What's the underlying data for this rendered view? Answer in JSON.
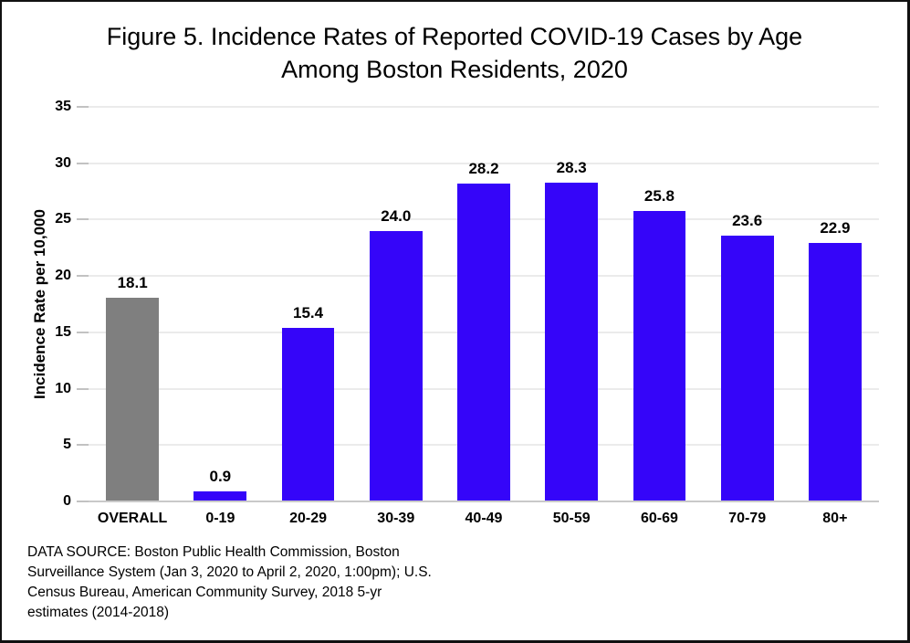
{
  "title_lines": [
    "Figure 5. Incidence Rates of Reported COVID-19 Cases by Age",
    "Among Boston Residents, 2020"
  ],
  "footer": {
    "lines": [
      "DATA SOURCE: Boston Public Health Commission, Boston",
      "Surveillance System (Jan 3, 2020 to April 2, 2020, 1:00pm); U.S.",
      "Census Bureau, American Community Survey, 2018 5-yr",
      "estimates (2014-2018)"
    ]
  },
  "chart_data": {
    "type": "bar",
    "title": "Figure 5. Incidence Rates of Reported COVID-19 Cases by Age Among Boston Residents, 2020",
    "xlabel": "",
    "ylabel": "Incidence Rate per 10,000",
    "ylim": [
      0,
      35
    ],
    "yticks": [
      0,
      5,
      10,
      15,
      20,
      25,
      30,
      35
    ],
    "grid": true,
    "legend_position": "none",
    "categories": [
      "OVERALL",
      "0-19",
      "20-29",
      "30-39",
      "40-49",
      "50-59",
      "60-69",
      "70-79",
      "80+"
    ],
    "values": [
      18.1,
      0.9,
      15.4,
      24.0,
      28.2,
      28.3,
      25.8,
      23.6,
      22.9
    ],
    "value_labels": [
      "18.1",
      "0.9",
      "15.4",
      "24.0",
      "28.2",
      "28.3",
      "25.8",
      "23.6",
      "22.9"
    ],
    "bar_colors": [
      "#7f7f7f",
      "#3505f9",
      "#3505f9",
      "#3505f9",
      "#3505f9",
      "#3505f9",
      "#3505f9",
      "#3505f9",
      "#3505f9"
    ],
    "colors": {
      "overall_bar": "#7f7f7f",
      "age_bar": "#3505f9",
      "gridline": "#d7d7d7",
      "axis_line": "#c9c9c9",
      "text": "#000000"
    }
  }
}
